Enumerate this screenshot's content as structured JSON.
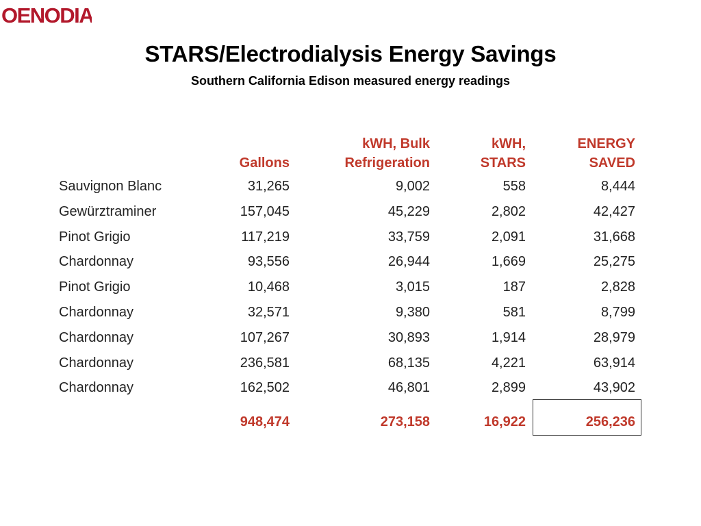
{
  "logo": {
    "text": "OENODIA",
    "color": "#b2182b"
  },
  "title": "STARS/Electrodialysis Energy Savings",
  "subtitle": "Southern California Edison measured energy readings",
  "table": {
    "headers": [
      {
        "line1": "",
        "line2": "Gallons"
      },
      {
        "line1": "kWH, Bulk",
        "line2": "Refrigeration"
      },
      {
        "line1": "kWH,",
        "line2": "STARS"
      },
      {
        "line1": "ENERGY",
        "line2": "SAVED"
      }
    ],
    "rows": [
      {
        "name": "Sauvignon  Blanc",
        "gallons": "31,265",
        "bulk": "9,002",
        "stars": "558",
        "saved": "8,444"
      },
      {
        "name": "Gewürztraminer",
        "gallons": "157,045",
        "bulk": "45,229",
        "stars": "2,802",
        "saved": "42,427"
      },
      {
        "name": "Pinot  Grigio",
        "gallons": "117,219",
        "bulk": "33,759",
        "stars": "2,091",
        "saved": "31,668"
      },
      {
        "name": "Chardonnay",
        "gallons": "93,556",
        "bulk": "26,944",
        "stars": "1,669",
        "saved": "25,275"
      },
      {
        "name": "Pinot  Grigio",
        "gallons": "10,468",
        "bulk": "3,015",
        "stars": "187",
        "saved": "2,828"
      },
      {
        "name": "Chardonnay",
        "gallons": "32,571",
        "bulk": "9,380",
        "stars": "581",
        "saved": "8,799"
      },
      {
        "name": "Chardonnay",
        "gallons": "107,267",
        "bulk": "30,893",
        "stars": "1,914",
        "saved": "28,979"
      },
      {
        "name": "Chardonnay",
        "gallons": "236,581",
        "bulk": "68,135",
        "stars": "4,221",
        "saved": "63,914"
      },
      {
        "name": "Chardonnay",
        "gallons": "162,502",
        "bulk": "46,801",
        "stars": "2,899",
        "saved": "43,902"
      }
    ],
    "totals": {
      "gallons": "948,474",
      "bulk": "273,158",
      "stars": "16,922",
      "saved": "256,236"
    },
    "accent_color": "#c0392b"
  }
}
